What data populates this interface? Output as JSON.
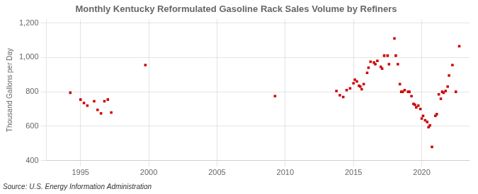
{
  "chart_data": {
    "type": "scatter",
    "title": "Monthly Kentucky Reformulated Gasoline Rack Sales Volume by Refiners",
    "ylabel": "Thousand Gallons per Day",
    "annotations": [
      "Source: U.S. Energy Information Administration"
    ],
    "color": "#cc0000",
    "marker": "square",
    "grid": true,
    "xlim": [
      1992.5,
      2023.5
    ],
    "ylim": [
      400,
      1220
    ],
    "xticks": [
      1995,
      2000,
      2005,
      2010,
      2015,
      2020
    ],
    "yticks": [
      400,
      600,
      800,
      {
        "value": 1000,
        "label": "1,000"
      },
      {
        "value": 1200,
        "label": "1,200"
      }
    ],
    "x": [
      1994.25,
      1995.0,
      1995.25,
      1995.5,
      1996.0,
      1996.25,
      1996.5,
      1996.75,
      1997.0,
      1997.25,
      1999.75,
      2009.25,
      2013.75,
      2014.0,
      2014.25,
      2014.5,
      2014.75,
      2015.0,
      2015.1,
      2015.25,
      2015.4,
      2015.5,
      2015.6,
      2015.75,
      2016.0,
      2016.1,
      2016.25,
      2016.5,
      2016.6,
      2016.75,
      2017.0,
      2017.1,
      2017.25,
      2017.5,
      2017.6,
      2018.0,
      2018.1,
      2018.25,
      2018.4,
      2018.5,
      2018.6,
      2018.75,
      2019.0,
      2019.1,
      2019.25,
      2019.4,
      2019.5,
      2019.6,
      2019.75,
      2019.9,
      2020.0,
      2020.1,
      2020.25,
      2020.4,
      2020.5,
      2020.6,
      2020.75,
      2021.0,
      2021.1,
      2021.25,
      2021.4,
      2021.5,
      2021.6,
      2021.75,
      2021.9,
      2022.0,
      2022.25,
      2022.5,
      2022.75
    ],
    "values": [
      795,
      755,
      735,
      720,
      745,
      695,
      675,
      745,
      755,
      680,
      955,
      775,
      805,
      780,
      770,
      810,
      820,
      850,
      870,
      860,
      835,
      830,
      815,
      845,
      910,
      940,
      975,
      970,
      960,
      980,
      945,
      935,
      1010,
      1010,
      960,
      1110,
      1010,
      960,
      845,
      800,
      800,
      810,
      800,
      800,
      775,
      730,
      725,
      710,
      720,
      700,
      645,
      660,
      635,
      625,
      595,
      605,
      480,
      660,
      670,
      785,
      760,
      800,
      795,
      805,
      830,
      895,
      955,
      800,
      1065
    ]
  }
}
